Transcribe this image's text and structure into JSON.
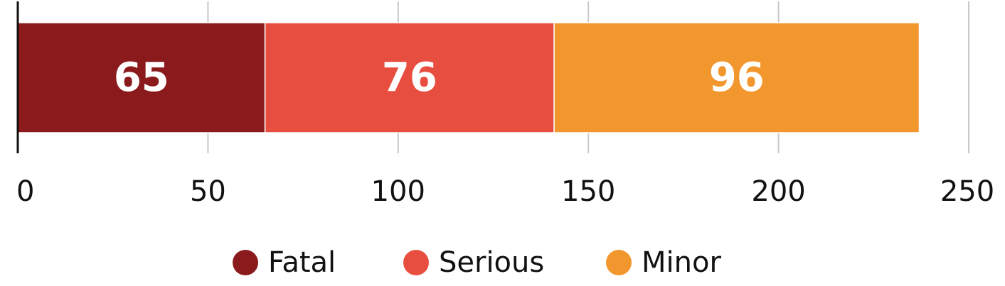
{
  "chart_data": {
    "type": "bar",
    "orientation": "horizontal",
    "stacked": true,
    "categories": [
      ""
    ],
    "series": [
      {
        "name": "Fatal",
        "values": [
          65
        ],
        "color": "#8B1A1D"
      },
      {
        "name": "Serious",
        "values": [
          76
        ],
        "color": "#E84E40"
      },
      {
        "name": "Minor",
        "values": [
          96
        ],
        "color": "#F2962E"
      }
    ],
    "data_labels": [
      "65",
      "76",
      "96"
    ],
    "xlim": [
      0,
      250
    ],
    "xticks": [
      0,
      50,
      100,
      150,
      200,
      250
    ],
    "xtick_labels": [
      "0",
      "50",
      "100",
      "150",
      "200",
      "250"
    ],
    "grid": "vertical",
    "legend": "bottom-center",
    "title": "",
    "xlabel": "",
    "ylabel": ""
  }
}
